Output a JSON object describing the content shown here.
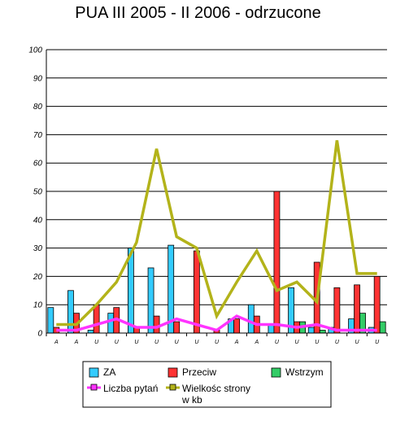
{
  "chart_data": {
    "type": "bar",
    "title": "PUA III 2005 - II 2006 - odrzucone",
    "xlabel": "",
    "ylabel": "",
    "ylim": [
      0,
      100
    ],
    "yticks": [
      0,
      10,
      20,
      30,
      40,
      50,
      60,
      70,
      80,
      90,
      100
    ],
    "grid": true,
    "legend_position": "bottom",
    "categories": [
      "A",
      "A",
      "U",
      "U",
      "U",
      "U",
      "U",
      "U",
      "U",
      "A",
      "A",
      "U",
      "U",
      "U",
      "U",
      "U",
      "U"
    ],
    "series": [
      {
        "name": "ZA",
        "kind": "bar",
        "color": "#33ccff",
        "values": [
          9,
          15,
          1,
          7,
          30,
          23,
          31,
          0,
          0,
          5,
          10,
          3,
          16,
          2,
          2,
          5,
          2
        ]
      },
      {
        "name": "Przeciw",
        "kind": "bar",
        "color": "#ff3333",
        "values": [
          2,
          7,
          10,
          9,
          2,
          6,
          4,
          29,
          1,
          5,
          6,
          50,
          4,
          25,
          16,
          17,
          20
        ]
      },
      {
        "name": "Wstrzym",
        "kind": "bar",
        "color": "#33cc66",
        "values": [
          0,
          0,
          0,
          0,
          0,
          0,
          0,
          0,
          0,
          0,
          0,
          0,
          4,
          1,
          0,
          7,
          4
        ]
      },
      {
        "name": "Liczba pytań",
        "kind": "line",
        "color": "#ff33ff",
        "values": [
          1,
          1,
          3,
          5,
          2,
          2,
          5,
          3,
          1,
          6,
          3,
          3,
          2,
          3,
          1,
          1,
          1
        ]
      },
      {
        "name": "Wielkośc strony w kb",
        "kind": "line",
        "color": "#b3b31a",
        "values": [
          3,
          3,
          10,
          18,
          32,
          65,
          34,
          30,
          6,
          18,
          29,
          15,
          18,
          11,
          68,
          21,
          21
        ]
      }
    ]
  }
}
